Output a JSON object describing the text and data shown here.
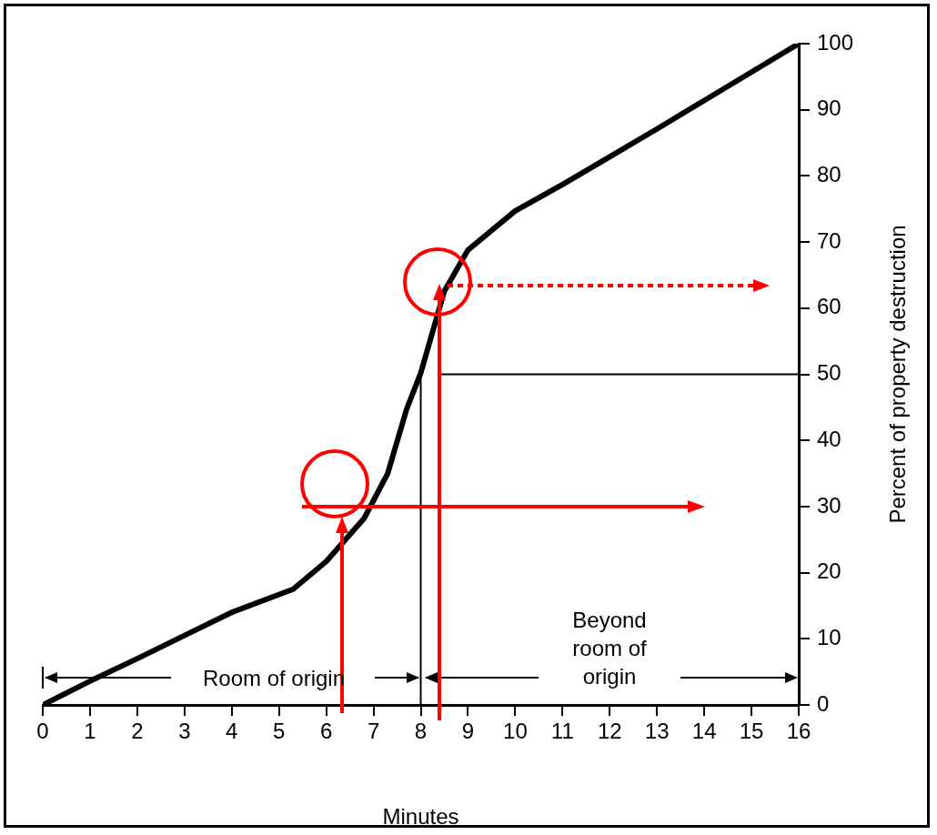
{
  "chart_data": {
    "type": "line",
    "xlabel": "Minutes",
    "ylabel": "Percent of property destruction",
    "x": [
      0,
      1,
      2,
      3,
      4,
      5.3,
      6,
      6.8,
      7.3,
      7.7,
      8,
      8.5,
      9,
      10,
      11,
      12,
      13,
      14,
      15,
      16
    ],
    "series": [
      {
        "color": "#000000",
        "values": [
          0,
          3.6,
          7,
          10.5,
          14,
          17.5,
          21.7,
          28.2,
          35,
          44.7,
          50.2,
          62.6,
          68.8,
          74.7,
          78.7,
          82.9,
          87.1,
          91.4,
          95.7,
          100
        ]
      }
    ],
    "xlim": [
      0,
      16
    ],
    "xticks": [
      0,
      1,
      2,
      3,
      4,
      5,
      6,
      7,
      8,
      9,
      10,
      11,
      12,
      13,
      14,
      15,
      16
    ],
    "ylim": [
      0,
      100
    ],
    "yticks": [
      0,
      10,
      20,
      30,
      40,
      50,
      60,
      70,
      80,
      90,
      100
    ],
    "ref_lines": [
      {
        "axis": "x",
        "value": 8,
        "color": "#000000"
      },
      {
        "axis": "y",
        "value": 50,
        "color": "#000000"
      }
    ],
    "annotations": [
      "Room of origin",
      "Beyond room of origin"
    ],
    "grid": false,
    "legend": false,
    "marker": "none",
    "line_style": "solid"
  }
}
